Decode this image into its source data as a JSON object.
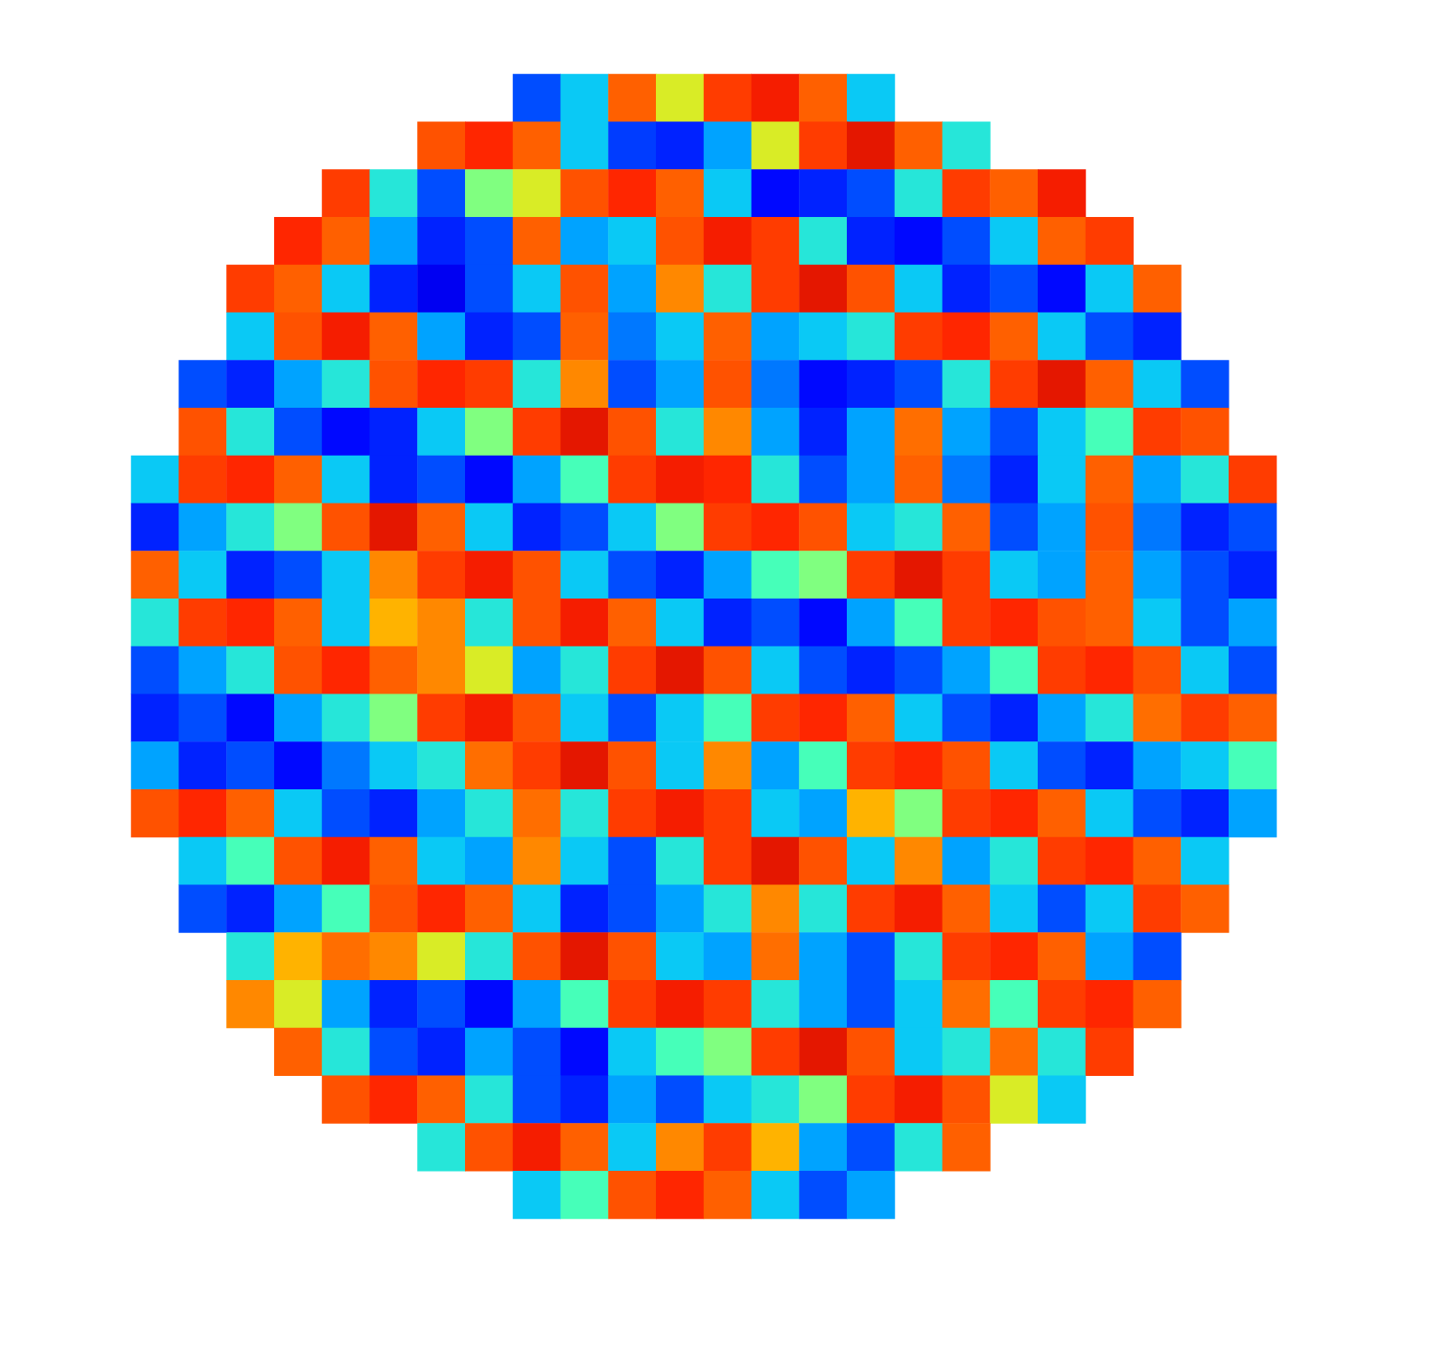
{
  "chart_data": {
    "type": "heatmap",
    "tick_labels": false,
    "color": "jet",
    "zlim": [
      0,
      1
    ],
    "cells": [
      [
        null,
        null,
        null,
        null,
        null,
        null,
        null,
        null,
        0.2,
        0.35,
        0.8,
        0.6,
        0.85,
        0.9,
        0.8,
        0.35,
        null,
        null,
        null,
        null,
        null,
        null,
        null,
        null
      ],
      [
        null,
        null,
        null,
        null,
        null,
        null,
        0.82,
        0.88,
        0.8,
        0.35,
        0.18,
        0.15,
        0.3,
        0.6,
        0.85,
        0.92,
        0.8,
        0.4,
        null,
        null,
        null,
        null,
        null,
        null
      ],
      [
        null,
        null,
        null,
        null,
        0.85,
        0.4,
        0.2,
        0.5,
        0.6,
        0.82,
        0.88,
        0.8,
        0.35,
        0.12,
        0.15,
        0.2,
        0.4,
        0.85,
        0.8,
        0.9,
        null,
        null,
        null,
        null
      ],
      [
        null,
        null,
        null,
        0.88,
        0.8,
        0.3,
        0.15,
        0.2,
        0.8,
        0.3,
        0.35,
        0.82,
        0.9,
        0.85,
        0.4,
        0.15,
        0.12,
        0.2,
        0.35,
        0.8,
        0.85,
        null,
        null,
        null
      ],
      [
        null,
        null,
        0.85,
        0.8,
        0.35,
        0.15,
        0.1,
        0.2,
        0.35,
        0.82,
        0.3,
        0.75,
        0.4,
        0.85,
        0.92,
        0.82,
        0.35,
        0.15,
        0.2,
        0.12,
        0.35,
        0.8,
        null,
        null
      ],
      [
        null,
        null,
        0.35,
        0.82,
        0.9,
        0.8,
        0.3,
        0.15,
        0.2,
        0.8,
        0.25,
        0.35,
        0.8,
        0.3,
        0.35,
        0.4,
        0.85,
        0.88,
        0.8,
        0.35,
        0.2,
        0.15,
        null,
        null
      ],
      [
        null,
        0.2,
        0.15,
        0.3,
        0.4,
        0.82,
        0.88,
        0.85,
        0.4,
        0.75,
        0.2,
        0.3,
        0.82,
        0.25,
        0.12,
        0.15,
        0.2,
        0.4,
        0.85,
        0.92,
        0.8,
        0.35,
        0.2,
        null
      ],
      [
        null,
        0.82,
        0.4,
        0.2,
        0.12,
        0.15,
        0.35,
        0.5,
        0.85,
        0.92,
        0.82,
        0.4,
        0.75,
        0.3,
        0.15,
        0.3,
        0.78,
        0.3,
        0.2,
        0.35,
        0.45,
        0.85,
        0.82,
        null
      ],
      [
        0.35,
        0.85,
        0.88,
        0.8,
        0.35,
        0.15,
        0.2,
        0.12,
        0.3,
        0.45,
        0.85,
        0.9,
        0.88,
        0.4,
        0.2,
        0.3,
        0.8,
        0.25,
        0.15,
        0.35,
        0.8,
        0.3,
        0.4,
        0.85
      ],
      [
        0.15,
        0.3,
        0.4,
        0.5,
        0.82,
        0.92,
        0.8,
        0.35,
        0.15,
        0.2,
        0.35,
        0.5,
        0.85,
        0.88,
        0.82,
        0.35,
        0.4,
        0.8,
        0.2,
        0.3,
        0.82,
        0.25,
        0.15,
        0.2
      ],
      [
        0.8,
        0.35,
        0.15,
        0.2,
        0.35,
        0.75,
        0.85,
        0.9,
        0.82,
        0.35,
        0.2,
        0.15,
        0.3,
        0.45,
        0.5,
        0.85,
        0.92,
        0.85,
        0.35,
        0.3,
        0.8,
        0.3,
        0.2,
        0.15
      ],
      [
        0.4,
        0.85,
        0.88,
        0.8,
        0.35,
        0.7,
        0.75,
        0.4,
        0.82,
        0.9,
        0.8,
        0.35,
        0.15,
        0.2,
        0.12,
        0.3,
        0.45,
        0.85,
        0.88,
        0.82,
        0.8,
        0.35,
        0.2,
        0.3
      ],
      [
        0.2,
        0.3,
        0.4,
        0.82,
        0.88,
        0.8,
        0.75,
        0.6,
        0.3,
        0.4,
        0.85,
        0.92,
        0.82,
        0.35,
        0.2,
        0.15,
        0.2,
        0.3,
        0.45,
        0.85,
        0.88,
        0.82,
        0.35,
        0.2
      ],
      [
        0.15,
        0.2,
        0.12,
        0.3,
        0.4,
        0.5,
        0.85,
        0.9,
        0.82,
        0.35,
        0.2,
        0.35,
        0.45,
        0.85,
        0.88,
        0.8,
        0.35,
        0.2,
        0.15,
        0.3,
        0.4,
        0.78,
        0.85,
        0.8
      ],
      [
        0.3,
        0.15,
        0.2,
        0.12,
        0.25,
        0.35,
        0.4,
        0.78,
        0.85,
        0.92,
        0.82,
        0.35,
        0.75,
        0.3,
        0.45,
        0.85,
        0.88,
        0.82,
        0.35,
        0.2,
        0.15,
        0.3,
        0.35,
        0.45
      ],
      [
        0.82,
        0.88,
        0.8,
        0.35,
        0.2,
        0.15,
        0.3,
        0.4,
        0.78,
        0.4,
        0.85,
        0.9,
        0.85,
        0.35,
        0.3,
        0.7,
        0.5,
        0.85,
        0.88,
        0.8,
        0.35,
        0.2,
        0.15,
        0.3
      ],
      [
        null,
        0.35,
        0.45,
        0.82,
        0.9,
        0.8,
        0.35,
        0.3,
        0.75,
        0.35,
        0.2,
        0.4,
        0.85,
        0.92,
        0.82,
        0.35,
        0.75,
        0.3,
        0.4,
        0.85,
        0.88,
        0.8,
        0.35,
        null
      ],
      [
        null,
        0.2,
        0.15,
        0.3,
        0.45,
        0.82,
        0.88,
        0.8,
        0.35,
        0.15,
        0.2,
        0.3,
        0.4,
        0.75,
        0.4,
        0.85,
        0.9,
        0.8,
        0.35,
        0.2,
        0.35,
        0.85,
        0.8,
        null
      ],
      [
        null,
        null,
        0.4,
        0.7,
        0.78,
        0.75,
        0.6,
        0.4,
        0.82,
        0.92,
        0.82,
        0.35,
        0.3,
        0.78,
        0.3,
        0.2,
        0.4,
        0.85,
        0.88,
        0.8,
        0.3,
        0.2,
        null,
        null
      ],
      [
        null,
        null,
        0.75,
        0.6,
        0.3,
        0.15,
        0.2,
        0.12,
        0.3,
        0.45,
        0.85,
        0.9,
        0.85,
        0.4,
        0.3,
        0.2,
        0.35,
        0.78,
        0.45,
        0.85,
        0.88,
        0.8,
        null,
        null
      ],
      [
        null,
        null,
        null,
        0.8,
        0.4,
        0.2,
        0.15,
        0.3,
        0.2,
        0.12,
        0.35,
        0.45,
        0.5,
        0.85,
        0.92,
        0.82,
        0.35,
        0.4,
        0.78,
        0.4,
        0.85,
        null,
        null,
        null
      ],
      [
        null,
        null,
        null,
        null,
        0.82,
        0.88,
        0.8,
        0.4,
        0.2,
        0.15,
        0.3,
        0.2,
        0.35,
        0.4,
        0.5,
        0.85,
        0.9,
        0.82,
        0.6,
        0.35,
        null,
        null,
        null,
        null
      ],
      [
        null,
        null,
        null,
        null,
        null,
        null,
        0.4,
        0.82,
        0.9,
        0.8,
        0.35,
        0.75,
        0.85,
        0.7,
        0.3,
        0.2,
        0.4,
        0.8,
        null,
        null,
        null,
        null,
        null,
        null
      ],
      [
        null,
        null,
        null,
        null,
        null,
        null,
        null,
        null,
        0.35,
        0.45,
        0.82,
        0.88,
        0.8,
        0.35,
        0.2,
        0.3,
        null,
        null,
        null,
        null,
        null,
        null,
        null,
        null
      ]
    ]
  }
}
